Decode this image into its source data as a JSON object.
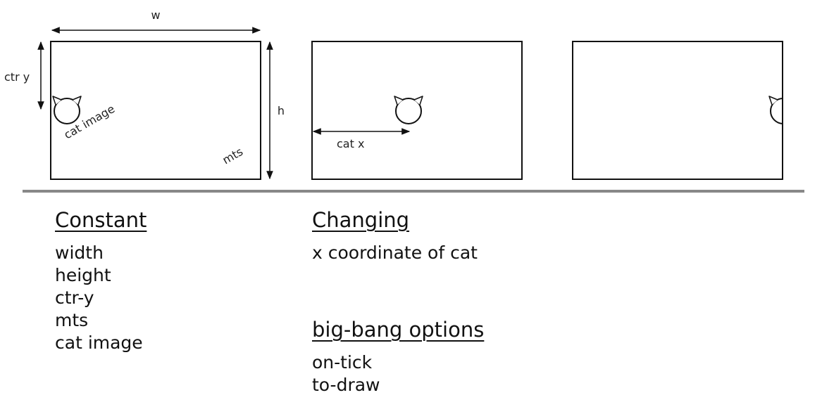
{
  "diagram": {
    "labels": {
      "w": "w",
      "h": "h",
      "ctr_y": "ctr y",
      "cat_image": "cat image",
      "mts": "mts",
      "cat_x": "cat x"
    },
    "colors": {
      "line": "#111111",
      "divider": "#888888"
    }
  },
  "constant": {
    "title": "Constant",
    "items": [
      "width",
      "height",
      "ctr-y",
      "mts",
      "cat image"
    ]
  },
  "changing": {
    "title": "Changing",
    "items": [
      "x coordinate of cat"
    ]
  },
  "big_bang": {
    "title": "big-bang options",
    "items": [
      "on-tick",
      "to-draw"
    ]
  }
}
